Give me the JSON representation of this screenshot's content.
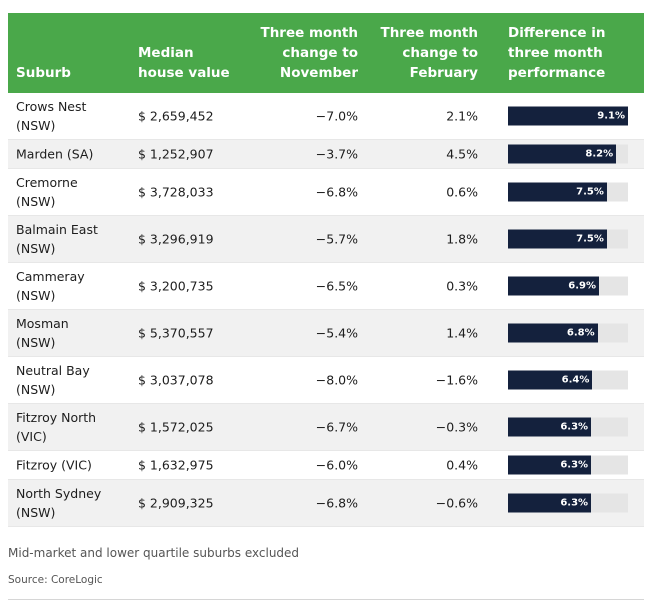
{
  "chart_data": {
    "type": "table",
    "headers": {
      "suburb": "Suburb",
      "median": [
        "Median",
        "house value"
      ],
      "nov": [
        "Three month",
        "change to",
        "November"
      ],
      "feb": [
        "Three month",
        "change to",
        "February"
      ],
      "diff": [
        "Difference in",
        "three month",
        "performance"
      ]
    },
    "rows": [
      {
        "suburb": [
          "Crows Nest",
          "(NSW)"
        ],
        "median": "$ 2,659,452",
        "nov": "−7.0%",
        "feb": "2.1%",
        "diff": 9.1,
        "diff_label": "9.1%"
      },
      {
        "suburb": [
          "Marden (SA)"
        ],
        "median": "$ 1,252,907",
        "nov": "−3.7%",
        "feb": "4.5%",
        "diff": 8.2,
        "diff_label": "8.2%"
      },
      {
        "suburb": [
          "Cremorne",
          "(NSW)"
        ],
        "median": "$ 3,728,033",
        "nov": "−6.8%",
        "feb": "0.6%",
        "diff": 7.5,
        "diff_label": "7.5%"
      },
      {
        "suburb": [
          "Balmain East",
          "(NSW)"
        ],
        "median": "$ 3,296,919",
        "nov": "−5.7%",
        "feb": "1.8%",
        "diff": 7.5,
        "diff_label": "7.5%"
      },
      {
        "suburb": [
          "Cammeray",
          "(NSW)"
        ],
        "median": "$ 3,200,735",
        "nov": "−6.5%",
        "feb": "0.3%",
        "diff": 6.9,
        "diff_label": "6.9%"
      },
      {
        "suburb": [
          "Mosman",
          "(NSW)"
        ],
        "median": "$ 5,370,557",
        "nov": "−5.4%",
        "feb": "1.4%",
        "diff": 6.8,
        "diff_label": "6.8%"
      },
      {
        "suburb": [
          "Neutral Bay",
          "(NSW)"
        ],
        "median": "$ 3,037,078",
        "nov": "−8.0%",
        "feb": "−1.6%",
        "diff": 6.4,
        "diff_label": "6.4%"
      },
      {
        "suburb": [
          "Fitzroy North",
          "(VIC)"
        ],
        "median": "$ 1,572,025",
        "nov": "−6.7%",
        "feb": "−0.3%",
        "diff": 6.3,
        "diff_label": "6.3%"
      },
      {
        "suburb": [
          "Fitzroy (VIC)"
        ],
        "median": "$ 1,632,975",
        "nov": "−6.0%",
        "feb": "0.4%",
        "diff": 6.3,
        "diff_label": "6.3%"
      },
      {
        "suburb": [
          "North Sydney",
          "(NSW)"
        ],
        "median": "$ 2,909,325",
        "nov": "−6.8%",
        "feb": "−0.6%",
        "diff": 6.3,
        "diff_label": "6.3%"
      }
    ],
    "diff_axis_max": 9.1,
    "colors": {
      "header": "#4aa84a",
      "bar": "#14213d",
      "track": "#e5e5e5"
    }
  },
  "footer": {
    "note": "Mid-market and lower quartile suburbs excluded",
    "source": "Source: CoreLogic"
  }
}
